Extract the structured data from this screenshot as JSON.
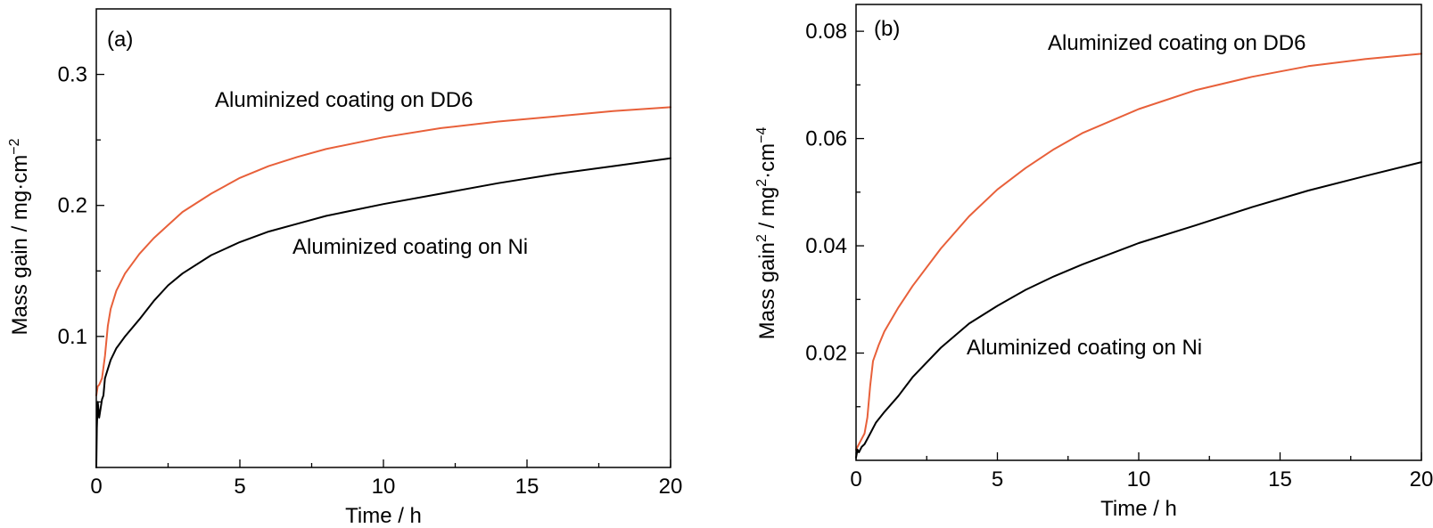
{
  "colors": {
    "dd6": "#E8603A",
    "ni": "#000000"
  },
  "chart_data": [
    {
      "type": "line",
      "panel_label": "(a)",
      "xlabel": "Time / h",
      "ylabel": {
        "main": "Mass gain / mg·cm",
        "sup": "−2"
      },
      "xlim": [
        0,
        20
      ],
      "ylim": [
        0,
        0.35
      ],
      "xticks": [
        {
          "v": 0,
          "label": "0"
        },
        {
          "v": 5,
          "label": "5"
        },
        {
          "v": 10,
          "label": "10"
        },
        {
          "v": 15,
          "label": "15"
        },
        {
          "v": 20,
          "label": "20"
        }
      ],
      "yticks": [
        {
          "v": 0.1,
          "label": "0.1"
        },
        {
          "v": 0.2,
          "label": "0.2"
        },
        {
          "v": 0.3,
          "label": "0.3"
        }
      ],
      "series": [
        {
          "key": "dd6",
          "annotation": "Aluminized coating on DD6",
          "x": [
            0,
            0.05,
            0.1,
            0.2,
            0.3,
            0.4,
            0.5,
            0.7,
            1,
            1.5,
            2,
            3,
            4,
            5,
            6,
            7,
            8,
            10,
            12,
            14,
            16,
            18,
            20
          ],
          "y": [
            0.055,
            0.062,
            0.063,
            0.068,
            0.085,
            0.108,
            0.121,
            0.135,
            0.148,
            0.163,
            0.175,
            0.195,
            0.209,
            0.221,
            0.23,
            0.237,
            0.243,
            0.252,
            0.259,
            0.264,
            0.268,
            0.272,
            0.275
          ]
        },
        {
          "key": "ni",
          "annotation": "Aluminized coating on Ni",
          "x": [
            0,
            0.02,
            0.05,
            0.08,
            0.1,
            0.15,
            0.2,
            0.25,
            0.3,
            0.4,
            0.5,
            0.7,
            1,
            1.5,
            2,
            2.5,
            3,
            4,
            5,
            6,
            7,
            8,
            10,
            12,
            14,
            16,
            18,
            20
          ],
          "y": [
            0.0,
            0.03,
            0.05,
            0.043,
            0.038,
            0.045,
            0.052,
            0.055,
            0.068,
            0.075,
            0.082,
            0.091,
            0.1,
            0.113,
            0.127,
            0.139,
            0.148,
            0.162,
            0.172,
            0.18,
            0.186,
            0.192,
            0.201,
            0.209,
            0.217,
            0.224,
            0.23,
            0.236
          ]
        }
      ]
    },
    {
      "type": "line",
      "panel_label": "(b)",
      "xlabel": "Time / h",
      "ylabel": {
        "pre": "Mass gain",
        "sup1": "2",
        "mid": " / mg",
        "sup2": "2",
        "post": "·cm",
        "sup3": "−4"
      },
      "xlim": [
        0,
        20
      ],
      "ylim": [
        0,
        0.085
      ],
      "xticks": [
        {
          "v": 0,
          "label": "0"
        },
        {
          "v": 5,
          "label": "5"
        },
        {
          "v": 10,
          "label": "10"
        },
        {
          "v": 15,
          "label": "15"
        },
        {
          "v": 20,
          "label": "20"
        }
      ],
      "yticks": [
        {
          "v": 0.02,
          "label": "0.02"
        },
        {
          "v": 0.04,
          "label": "0.04"
        },
        {
          "v": 0.06,
          "label": "0.06"
        },
        {
          "v": 0.08,
          "label": "0.08"
        }
      ],
      "series": [
        {
          "key": "dd6",
          "annotation": "Aluminized coating on DD6",
          "x": [
            0,
            0.1,
            0.2,
            0.3,
            0.4,
            0.5,
            0.6,
            0.8,
            1,
            1.5,
            2,
            3,
            4,
            5,
            6,
            7,
            8,
            10,
            12,
            14,
            16,
            18,
            20
          ],
          "y": [
            0.002,
            0.003,
            0.004,
            0.005,
            0.008,
            0.014,
            0.0185,
            0.0215,
            0.024,
            0.0285,
            0.0325,
            0.0395,
            0.0455,
            0.0505,
            0.0545,
            0.058,
            0.061,
            0.0655,
            0.069,
            0.0715,
            0.0735,
            0.0748,
            0.0758
          ]
        },
        {
          "key": "ni",
          "annotation": "Aluminized coating on Ni",
          "x": [
            0,
            0.05,
            0.1,
            0.2,
            0.3,
            0.4,
            0.5,
            0.7,
            1,
            1.5,
            2,
            3,
            4,
            5,
            6,
            7,
            8,
            10,
            12,
            14,
            16,
            18,
            20
          ],
          "y": [
            0.0005,
            0.002,
            0.0015,
            0.0025,
            0.003,
            0.004,
            0.005,
            0.007,
            0.009,
            0.012,
            0.0155,
            0.021,
            0.0255,
            0.0288,
            0.0318,
            0.0343,
            0.0365,
            0.0405,
            0.0438,
            0.0472,
            0.0503,
            0.053,
            0.0556
          ]
        }
      ]
    }
  ]
}
